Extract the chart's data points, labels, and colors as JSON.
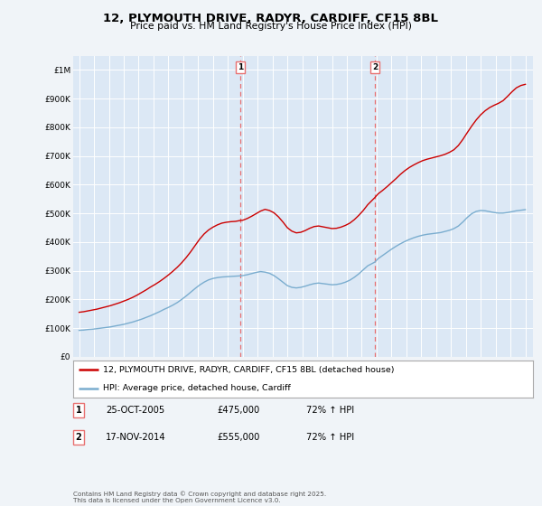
{
  "title": "12, PLYMOUTH DRIVE, RADYR, CARDIFF, CF15 8BL",
  "subtitle": "Price paid vs. HM Land Registry's House Price Index (HPI)",
  "background_color": "#f0f4f8",
  "plot_bg_color": "#dce8f5",
  "ylim": [
    0,
    1050000
  ],
  "yticks": [
    0,
    100000,
    200000,
    300000,
    400000,
    500000,
    600000,
    700000,
    800000,
    900000,
    1000000
  ],
  "ytick_labels": [
    "£0",
    "£100K",
    "£200K",
    "£300K",
    "£400K",
    "£500K",
    "£600K",
    "£700K",
    "£800K",
    "£900K",
    "£1M"
  ],
  "red_line_label": "12, PLYMOUTH DRIVE, RADYR, CARDIFF, CF15 8BL (detached house)",
  "blue_line_label": "HPI: Average price, detached house, Cardiff",
  "marker1_date": "25-OCT-2005",
  "marker1_price": "£475,000",
  "marker1_hpi": "72% ↑ HPI",
  "marker1_x": 2005.82,
  "marker2_date": "17-NOV-2014",
  "marker2_price": "£555,000",
  "marker2_hpi": "72% ↑ HPI",
  "marker2_x": 2014.88,
  "footer": "Contains HM Land Registry data © Crown copyright and database right 2025.\nThis data is licensed under the Open Government Licence v3.0.",
  "red_color": "#cc0000",
  "blue_color": "#7aadcf",
  "marker_line_color": "#e87070",
  "grid_color": "#ffffff",
  "red_data_x": [
    1995.0,
    1995.3,
    1995.6,
    1995.9,
    1996.2,
    1996.5,
    1996.8,
    1997.1,
    1997.4,
    1997.7,
    1998.0,
    1998.3,
    1998.6,
    1998.9,
    1999.2,
    1999.5,
    1999.8,
    2000.1,
    2000.4,
    2000.7,
    2001.0,
    2001.3,
    2001.6,
    2001.9,
    2002.2,
    2002.5,
    2002.8,
    2003.1,
    2003.4,
    2003.7,
    2004.0,
    2004.3,
    2004.6,
    2004.9,
    2005.2,
    2005.5,
    2005.82,
    2006.0,
    2006.3,
    2006.6,
    2006.9,
    2007.2,
    2007.5,
    2007.8,
    2008.1,
    2008.4,
    2008.7,
    2009.0,
    2009.3,
    2009.6,
    2009.9,
    2010.2,
    2010.5,
    2010.8,
    2011.1,
    2011.4,
    2011.7,
    2012.0,
    2012.3,
    2012.6,
    2012.9,
    2013.2,
    2013.5,
    2013.8,
    2014.1,
    2014.4,
    2014.88,
    2015.1,
    2015.4,
    2015.7,
    2016.0,
    2016.3,
    2016.6,
    2016.9,
    2017.2,
    2017.5,
    2017.8,
    2018.1,
    2018.4,
    2018.7,
    2019.0,
    2019.3,
    2019.6,
    2019.9,
    2020.2,
    2020.5,
    2020.8,
    2021.1,
    2021.4,
    2021.7,
    2022.0,
    2022.3,
    2022.6,
    2022.9,
    2023.2,
    2023.5,
    2023.8,
    2024.1,
    2024.4,
    2024.7,
    2025.0
  ],
  "red_data_y": [
    155000,
    157000,
    160000,
    163000,
    166000,
    170000,
    174000,
    178000,
    183000,
    188000,
    194000,
    200000,
    207000,
    215000,
    224000,
    233000,
    243000,
    252000,
    262000,
    273000,
    285000,
    298000,
    312000,
    328000,
    346000,
    366000,
    388000,
    410000,
    428000,
    442000,
    452000,
    460000,
    466000,
    469000,
    471000,
    472000,
    475000,
    476000,
    482000,
    490000,
    499000,
    508000,
    514000,
    510000,
    502000,
    488000,
    470000,
    450000,
    438000,
    432000,
    434000,
    440000,
    448000,
    454000,
    456000,
    453000,
    450000,
    447000,
    448000,
    452000,
    458000,
    466000,
    478000,
    493000,
    510000,
    530000,
    555000,
    568000,
    580000,
    593000,
    607000,
    621000,
    636000,
    649000,
    660000,
    669000,
    677000,
    684000,
    689000,
    693000,
    697000,
    701000,
    706000,
    713000,
    722000,
    737000,
    758000,
    782000,
    805000,
    826000,
    844000,
    858000,
    869000,
    877000,
    884000,
    893000,
    908000,
    924000,
    938000,
    946000,
    950000
  ],
  "blue_data_x": [
    1995.0,
    1995.3,
    1995.6,
    1995.9,
    1996.2,
    1996.5,
    1996.8,
    1997.1,
    1997.4,
    1997.7,
    1998.0,
    1998.3,
    1998.6,
    1998.9,
    1999.2,
    1999.5,
    1999.8,
    2000.1,
    2000.4,
    2000.7,
    2001.0,
    2001.3,
    2001.6,
    2001.9,
    2002.2,
    2002.5,
    2002.8,
    2003.1,
    2003.4,
    2003.7,
    2004.0,
    2004.3,
    2004.6,
    2004.9,
    2005.2,
    2005.5,
    2005.82,
    2006.0,
    2006.3,
    2006.6,
    2006.9,
    2007.2,
    2007.5,
    2007.8,
    2008.1,
    2008.4,
    2008.7,
    2009.0,
    2009.3,
    2009.6,
    2009.9,
    2010.2,
    2010.5,
    2010.8,
    2011.1,
    2011.4,
    2011.7,
    2012.0,
    2012.3,
    2012.6,
    2012.9,
    2013.2,
    2013.5,
    2013.8,
    2014.1,
    2014.4,
    2014.88,
    2015.1,
    2015.4,
    2015.7,
    2016.0,
    2016.3,
    2016.6,
    2016.9,
    2017.2,
    2017.5,
    2017.8,
    2018.1,
    2018.4,
    2018.7,
    2019.0,
    2019.3,
    2019.6,
    2019.9,
    2020.2,
    2020.5,
    2020.8,
    2021.1,
    2021.4,
    2021.7,
    2022.0,
    2022.3,
    2022.6,
    2022.9,
    2023.2,
    2023.5,
    2023.8,
    2024.1,
    2024.4,
    2024.7,
    2025.0
  ],
  "blue_data_y": [
    92000,
    93000,
    95000,
    96000,
    98000,
    100000,
    102000,
    104000,
    107000,
    110000,
    113000,
    117000,
    121000,
    126000,
    131000,
    137000,
    143000,
    150000,
    157000,
    165000,
    172000,
    180000,
    189000,
    200000,
    212000,
    225000,
    238000,
    250000,
    260000,
    268000,
    273000,
    276000,
    278000,
    279000,
    280000,
    281000,
    282000,
    283000,
    286000,
    290000,
    294000,
    297000,
    295000,
    291000,
    283000,
    272000,
    260000,
    248000,
    242000,
    240000,
    242000,
    246000,
    251000,
    255000,
    257000,
    255000,
    253000,
    251000,
    252000,
    255000,
    260000,
    267000,
    277000,
    289000,
    303000,
    317000,
    330000,
    342000,
    353000,
    364000,
    375000,
    385000,
    394000,
    402000,
    409000,
    415000,
    420000,
    424000,
    427000,
    429000,
    431000,
    433000,
    437000,
    441000,
    447000,
    456000,
    470000,
    486000,
    499000,
    507000,
    510000,
    509000,
    506000,
    503000,
    501000,
    501000,
    503000,
    506000,
    509000,
    511000,
    513000
  ]
}
